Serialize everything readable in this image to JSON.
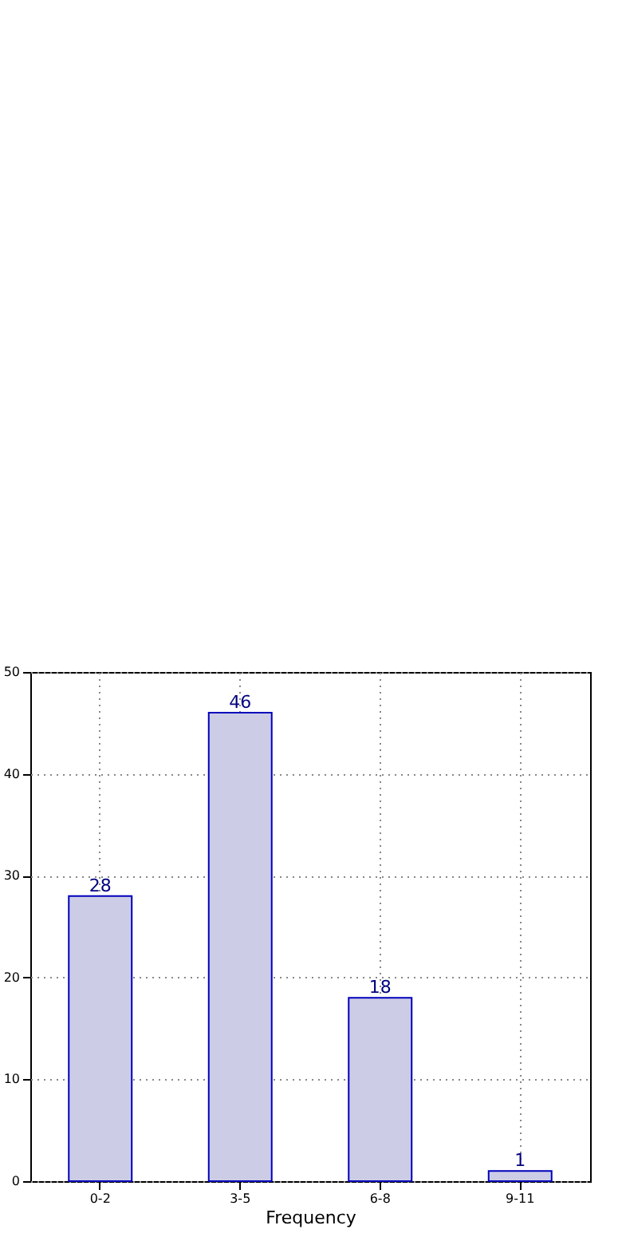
{
  "chart_data": {
    "type": "bar",
    "xlabel": "Frequency",
    "categories": [
      "0-2",
      "3-5",
      "6-8",
      "9-11"
    ],
    "values": [
      28,
      46,
      18,
      1
    ],
    "color": "#ccccE6",
    "ylim": [
      0,
      50
    ],
    "yticks": [
      0,
      10,
      20,
      30,
      40,
      50
    ],
    "grid": true,
    "data_labels": true
  }
}
